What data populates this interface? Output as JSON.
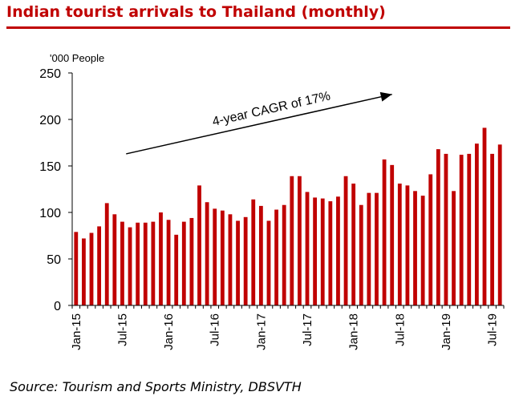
{
  "header": {
    "title": "Indian tourist arrivals to Thailand (monthly)",
    "accent_color": "#c00000"
  },
  "footer": {
    "source": "Source: Tourism and Sports Ministry, DBSVTH"
  },
  "chart_data": {
    "type": "bar",
    "title": "Indian tourist arrivals to Thailand (monthly)",
    "ylabel": "'000 People",
    "xlabel": "",
    "ylim": [
      0,
      250
    ],
    "yticks": [
      0,
      50,
      100,
      150,
      200,
      250
    ],
    "bar_color": "#c00000",
    "grid": false,
    "x_tick_labels": [
      {
        "index": 0,
        "label": "Jan-15"
      },
      {
        "index": 6,
        "label": "Jul-15"
      },
      {
        "index": 12,
        "label": "Jan-16"
      },
      {
        "index": 18,
        "label": "Jul-16"
      },
      {
        "index": 24,
        "label": "Jan-17"
      },
      {
        "index": 30,
        "label": "Jul-17"
      },
      {
        "index": 36,
        "label": "Jan-18"
      },
      {
        "index": 42,
        "label": "Jul-18"
      },
      {
        "index": 48,
        "label": "Jan-19"
      },
      {
        "index": 54,
        "label": "Jul-19"
      }
    ],
    "categories": [
      "Jan-15",
      "Feb-15",
      "Mar-15",
      "Apr-15",
      "May-15",
      "Jun-15",
      "Jul-15",
      "Aug-15",
      "Sep-15",
      "Oct-15",
      "Nov-15",
      "Dec-15",
      "Jan-16",
      "Feb-16",
      "Mar-16",
      "Apr-16",
      "May-16",
      "Jun-16",
      "Jul-16",
      "Aug-16",
      "Sep-16",
      "Oct-16",
      "Nov-16",
      "Dec-16",
      "Jan-17",
      "Feb-17",
      "Mar-17",
      "Apr-17",
      "May-17",
      "Jun-17",
      "Jul-17",
      "Aug-17",
      "Sep-17",
      "Oct-17",
      "Nov-17",
      "Dec-17",
      "Jan-18",
      "Feb-18",
      "Mar-18",
      "Apr-18",
      "May-18",
      "Jun-18",
      "Jul-18",
      "Aug-18",
      "Sep-18",
      "Oct-18",
      "Nov-18",
      "Dec-18",
      "Jan-19",
      "Feb-19",
      "Mar-19",
      "Apr-19",
      "May-19",
      "Jun-19",
      "Jul-19",
      "Aug-19"
    ],
    "values": [
      79,
      72,
      78,
      85,
      110,
      98,
      90,
      84,
      89,
      89,
      90,
      100,
      92,
      76,
      90,
      94,
      129,
      111,
      104,
      102,
      98,
      91,
      95,
      114,
      107,
      91,
      103,
      108,
      139,
      139,
      122,
      116,
      115,
      112,
      117,
      139,
      131,
      108,
      121,
      121,
      157,
      151,
      131,
      129,
      123,
      118,
      141,
      168,
      163,
      123,
      162,
      163,
      174,
      191,
      163,
      173
    ],
    "annotation": {
      "text": "4-year CAGR  of 17%",
      "arrow_from": {
        "x_index": 6.5,
        "value": 163
      },
      "arrow_to": {
        "x_index": 41.0,
        "value": 227
      }
    }
  }
}
